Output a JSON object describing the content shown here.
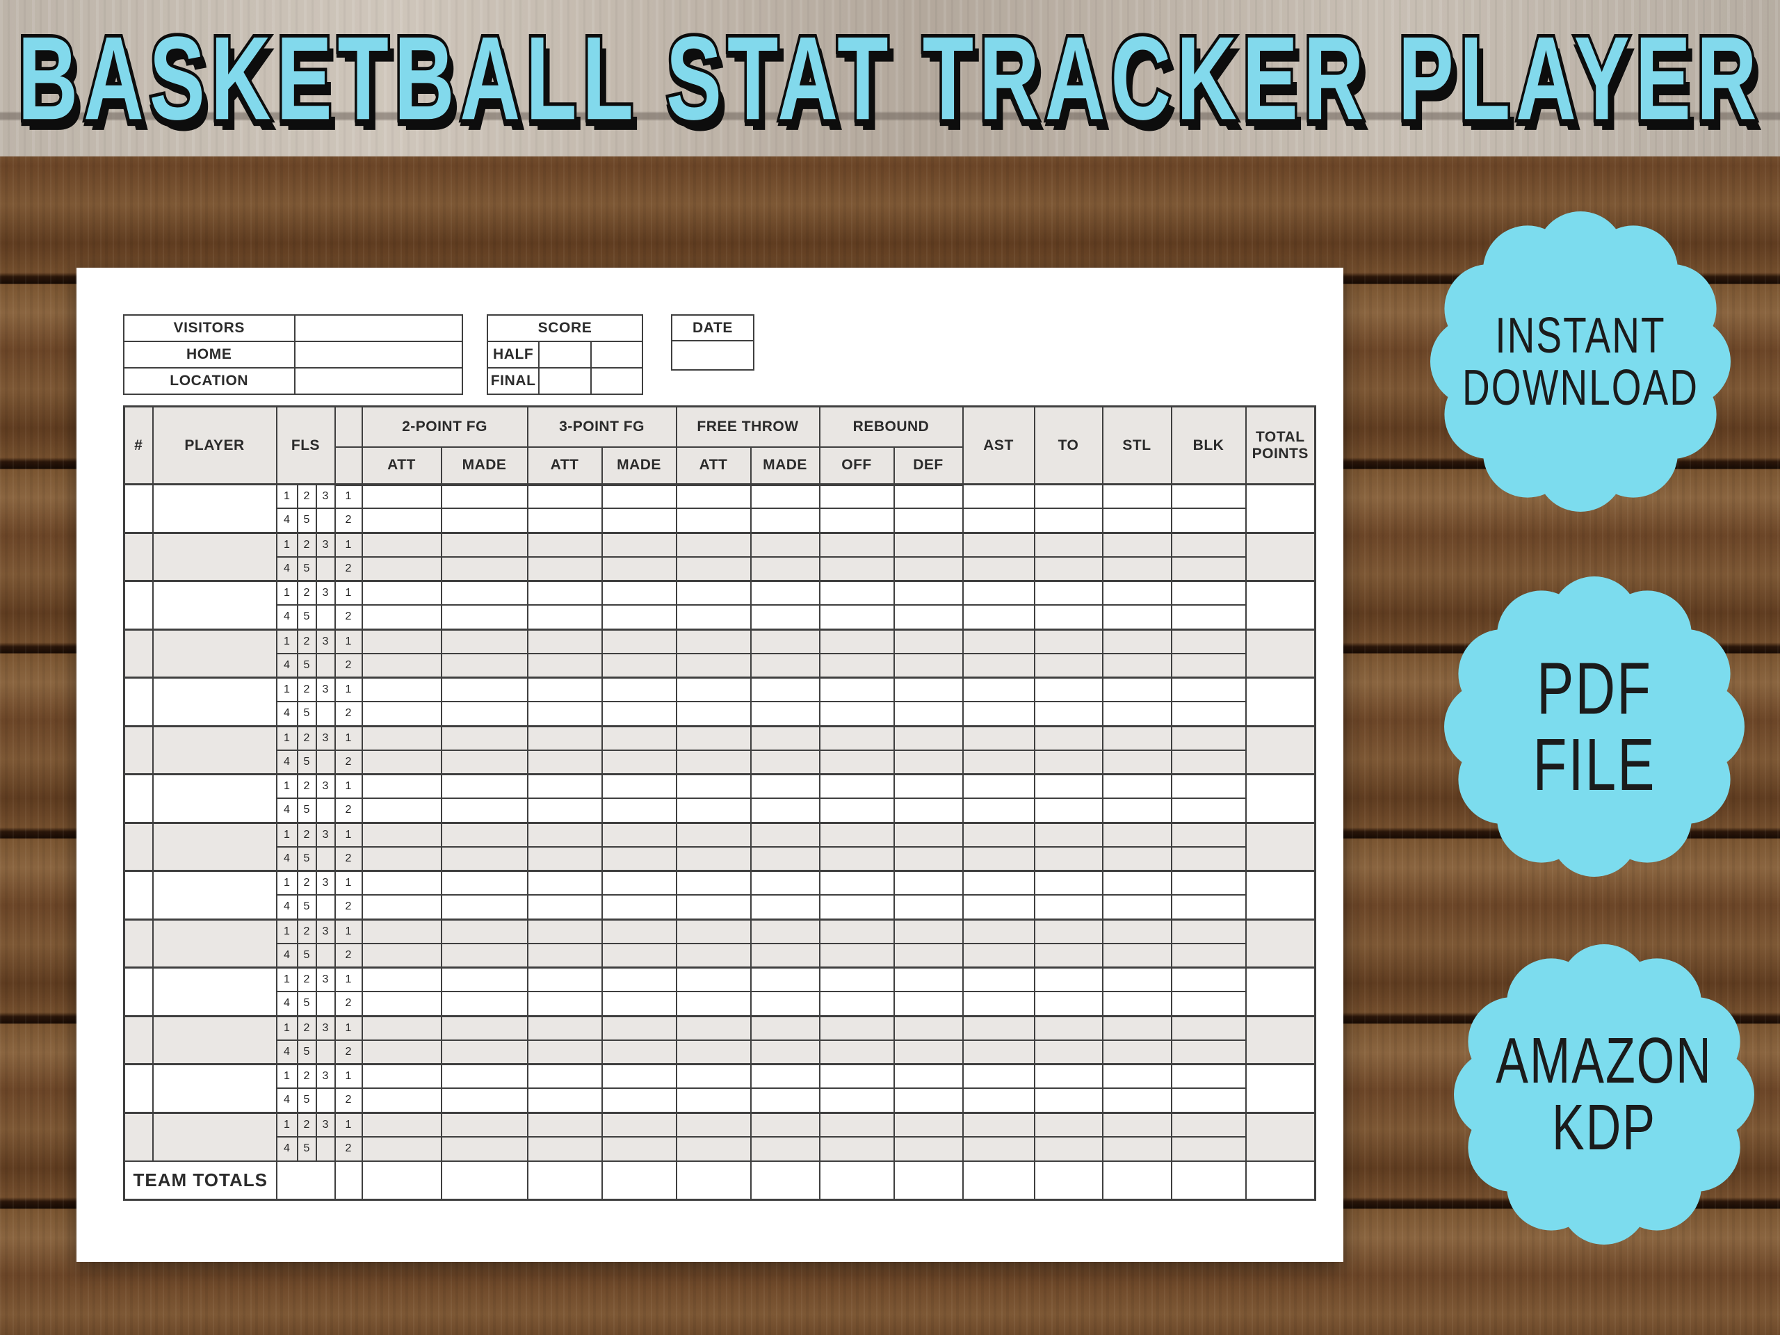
{
  "title": "BASKETBALL STAT TRACKER PLAYER",
  "colors": {
    "accent_cyan": "#7cdcee",
    "title_cyan": "#82d9ec",
    "badge_text": "#1b1b1b",
    "table_line": "#3f3f3f",
    "header_fill": "#e9e6e3",
    "shaded_row_fill": "#eae7e4",
    "paper": "#ffffff",
    "wood_brown": "#6d4a2b",
    "whitewash_band": "#bdb4a9"
  },
  "sheet": {
    "teams_table": {
      "row_labels": [
        "VISITORS",
        "HOME",
        "LOCATION"
      ]
    },
    "score_table": {
      "title": "SCORE",
      "row_labels": [
        "HALF",
        "FINAL"
      ]
    },
    "date_table": {
      "title": "DATE"
    },
    "stat_table": {
      "headers": {
        "number": "#",
        "player": "PLAYER",
        "fouls": "FLS",
        "two_point_fg": "2-POINT FG",
        "three_point_fg": "3-POINT FG",
        "free_throw": "FREE THROW",
        "rebound": "REBOUND",
        "att": "ATT",
        "made": "MADE",
        "off": "OFF",
        "def": "DEF",
        "ast": "AST",
        "to": "TO",
        "stl": "STL",
        "blk": "BLK",
        "total_points": "TOTAL POINTS"
      },
      "fouls_row1": [
        "1",
        "2",
        "3"
      ],
      "fouls_row2": [
        "4",
        "5",
        ""
      ],
      "halves": [
        "1",
        "2"
      ],
      "player_rows": 14,
      "team_totals_label": "TEAM TOTALS"
    }
  },
  "badges": [
    {
      "lines": [
        "INSTANT",
        "DOWNLOAD"
      ]
    },
    {
      "lines": [
        "PDF",
        "FILE"
      ]
    },
    {
      "lines": [
        "AMAZON",
        "KDP"
      ]
    }
  ]
}
